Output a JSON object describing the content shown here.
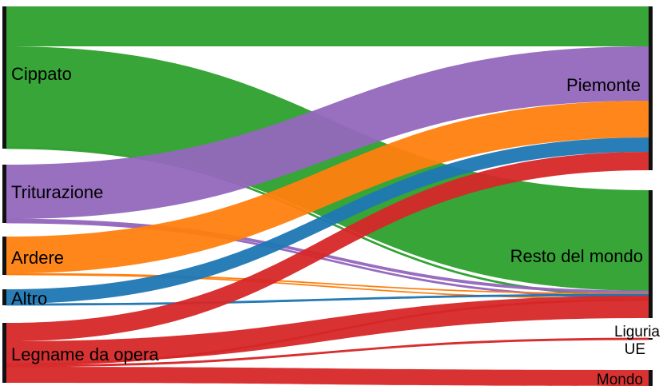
{
  "chart_data": {
    "type": "sankey",
    "sources": [
      {
        "id": "cippato",
        "label": "Cippato"
      },
      {
        "id": "triturazione",
        "label": "Triturazione"
      },
      {
        "id": "ardere",
        "label": "Ardere"
      },
      {
        "id": "altro",
        "label": "Altro"
      },
      {
        "id": "legname",
        "label": "Legname da opera"
      }
    ],
    "targets": [
      {
        "id": "piemonte",
        "label": "Piemonte"
      },
      {
        "id": "resto",
        "label": "Resto del mondo"
      },
      {
        "id": "liguria",
        "label": "Liguria"
      },
      {
        "id": "ue",
        "label": "UE"
      },
      {
        "id": "mondo",
        "label": "Mondo"
      }
    ],
    "flows": [
      {
        "source": "cippato",
        "target": "piemonte",
        "value": 50,
        "color": "#2ca02c"
      },
      {
        "source": "cippato",
        "target": "resto",
        "value": 126,
        "color": "#2ca02c"
      },
      {
        "source": "cippato",
        "target": "liguria",
        "value": 2,
        "color": "#2ca02c"
      },
      {
        "source": "triturazione",
        "target": "piemonte",
        "value": 68,
        "color": "#9467bd"
      },
      {
        "source": "triturazione",
        "target": "resto",
        "value": 3,
        "color": "#9467bd"
      },
      {
        "source": "triturazione",
        "target": "liguria",
        "value": 2,
        "color": "#9467bd"
      },
      {
        "source": "ardere",
        "target": "piemonte",
        "value": 46,
        "color": "#ff7f0e"
      },
      {
        "source": "ardere",
        "target": "resto",
        "value": 1,
        "color": "#ff7f0e"
      },
      {
        "source": "ardere",
        "target": "liguria",
        "value": 1,
        "color": "#ff7f0e"
      },
      {
        "source": "altro",
        "target": "piemonte",
        "value": 18,
        "color": "#1f77b4"
      },
      {
        "source": "altro",
        "target": "resto",
        "value": 2,
        "color": "#1f77b4"
      },
      {
        "source": "legname",
        "target": "piemonte",
        "value": 23,
        "color": "#d62728"
      },
      {
        "source": "legname",
        "target": "resto",
        "value": 28,
        "color": "#d62728"
      },
      {
        "source": "legname",
        "target": "liguria",
        "value": 2,
        "color": "#d62728"
      },
      {
        "source": "legname",
        "target": "ue",
        "value": 2,
        "color": "#d62728"
      },
      {
        "source": "legname",
        "target": "mondo",
        "value": 20,
        "color": "#d62728"
      }
    ]
  }
}
